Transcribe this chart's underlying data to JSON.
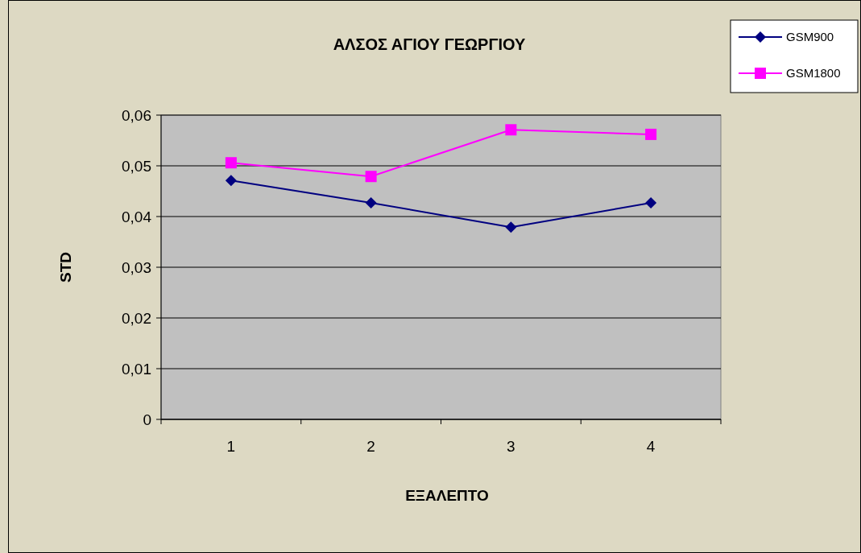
{
  "chart_data": {
    "type": "line",
    "title": "ΑΛΣΟΣ ΑΓΙΟΥ ΓΕΩΡΓΙΟΥ",
    "xlabel": "ΕΞΑΛΕΠΤΟ",
    "ylabel": "STD",
    "categories": [
      "1",
      "2",
      "3",
      "4"
    ],
    "series": [
      {
        "name": "GSM900",
        "color": "#000080",
        "marker": "diamond",
        "values": [
          0.0471,
          0.0427,
          0.0379,
          0.0427
        ]
      },
      {
        "name": "GSM1800",
        "color": "#ff00ff",
        "marker": "square",
        "values": [
          0.0506,
          0.0479,
          0.0571,
          0.0562
        ]
      }
    ],
    "ylim": [
      0,
      0.06
    ],
    "yticks": [
      {
        "value": 0,
        "label": "0"
      },
      {
        "value": 0.01,
        "label": "0,01"
      },
      {
        "value": 0.02,
        "label": "0,02"
      },
      {
        "value": 0.03,
        "label": "0,03"
      },
      {
        "value": 0.04,
        "label": "0,04"
      },
      {
        "value": 0.05,
        "label": "0,05"
      },
      {
        "value": 0.06,
        "label": "0,06"
      }
    ],
    "grid": "y",
    "legend": "top right"
  }
}
